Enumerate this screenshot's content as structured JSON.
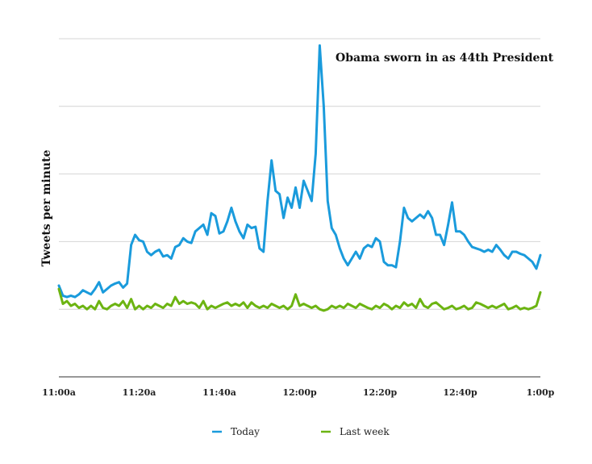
{
  "chart_data": {
    "type": "line",
    "title": "",
    "xlabel": "",
    "ylabel": "Tweets per minute",
    "x_tick_labels": [
      "11:00a",
      "11:20a",
      "11:40a",
      "12:00p",
      "12:20p",
      "12:40p",
      "1:00p"
    ],
    "x_range_minutes": [
      0,
      120
    ],
    "ylim": [
      0,
      5
    ],
    "grid": true,
    "y_tick_labels_shown": false,
    "legend": {
      "placement": "bottom-center"
    },
    "annotations": [
      {
        "text": "Obama sworn in as 44th President",
        "x_minute": 66,
        "y": 4.75
      }
    ],
    "series": [
      {
        "name": "Today",
        "color": "#1a9bdc",
        "x": [
          0,
          1,
          2,
          3,
          4,
          5,
          6,
          7,
          8,
          9,
          10,
          11,
          12,
          13,
          14,
          15,
          16,
          17,
          18,
          19,
          20,
          21,
          22,
          23,
          24,
          25,
          26,
          27,
          28,
          29,
          30,
          31,
          32,
          33,
          34,
          35,
          36,
          37,
          38,
          39,
          40,
          41,
          42,
          43,
          44,
          45,
          46,
          47,
          48,
          49,
          50,
          51,
          52,
          53,
          54,
          55,
          56,
          57,
          58,
          59,
          60,
          61,
          62,
          63,
          64,
          65,
          66,
          67,
          68,
          69,
          70,
          71,
          72,
          73,
          74,
          75,
          76,
          77,
          78,
          79,
          80,
          81,
          82,
          83,
          84,
          85,
          86,
          87,
          88,
          89,
          90,
          91,
          92,
          93,
          94,
          95,
          96,
          97,
          98,
          99,
          100,
          101,
          102,
          103,
          104,
          105,
          106,
          107,
          108,
          109,
          110,
          111,
          112,
          113,
          114,
          115,
          116,
          117,
          118,
          119,
          120
        ],
        "values": [
          1.35,
          1.2,
          1.18,
          1.2,
          1.18,
          1.22,
          1.28,
          1.25,
          1.22,
          1.3,
          1.4,
          1.25,
          1.3,
          1.35,
          1.38,
          1.4,
          1.32,
          1.38,
          1.95,
          2.1,
          2.02,
          2.0,
          1.85,
          1.8,
          1.85,
          1.88,
          1.78,
          1.8,
          1.75,
          1.92,
          1.95,
          2.05,
          2.0,
          1.98,
          2.15,
          2.2,
          2.25,
          2.1,
          2.42,
          2.38,
          2.12,
          2.15,
          2.3,
          2.5,
          2.3,
          2.15,
          2.05,
          2.25,
          2.2,
          2.22,
          1.9,
          1.85,
          2.6,
          3.2,
          2.75,
          2.7,
          2.35,
          2.65,
          2.5,
          2.8,
          2.5,
          2.9,
          2.75,
          2.6,
          3.3,
          4.9,
          4.0,
          2.6,
          2.2,
          2.1,
          1.9,
          1.75,
          1.65,
          1.75,
          1.85,
          1.75,
          1.9,
          1.95,
          1.92,
          2.05,
          2.0,
          1.7,
          1.65,
          1.65,
          1.62,
          2.0,
          2.5,
          2.35,
          2.3,
          2.35,
          2.4,
          2.35,
          2.45,
          2.35,
          2.1,
          2.1,
          1.95,
          2.25,
          2.58,
          2.15,
          2.15,
          2.1,
          2.0,
          1.92,
          1.9,
          1.88,
          1.85,
          1.88,
          1.85,
          1.95,
          1.88,
          1.8,
          1.75,
          1.85,
          1.85,
          1.82,
          1.8,
          1.75,
          1.7,
          1.6,
          1.8
        ]
      },
      {
        "name": "Last week",
        "color": "#6cb412",
        "x": [
          0,
          1,
          2,
          3,
          4,
          5,
          6,
          7,
          8,
          9,
          10,
          11,
          12,
          13,
          14,
          15,
          16,
          17,
          18,
          19,
          20,
          21,
          22,
          23,
          24,
          25,
          26,
          27,
          28,
          29,
          30,
          31,
          32,
          33,
          34,
          35,
          36,
          37,
          38,
          39,
          40,
          41,
          42,
          43,
          44,
          45,
          46,
          47,
          48,
          49,
          50,
          51,
          52,
          53,
          54,
          55,
          56,
          57,
          58,
          59,
          60,
          61,
          62,
          63,
          64,
          65,
          66,
          67,
          68,
          69,
          70,
          71,
          72,
          73,
          74,
          75,
          76,
          77,
          78,
          79,
          80,
          81,
          82,
          83,
          84,
          85,
          86,
          87,
          88,
          89,
          90,
          91,
          92,
          93,
          94,
          95,
          96,
          97,
          98,
          99,
          100,
          101,
          102,
          103,
          104,
          105,
          106,
          107,
          108,
          109,
          110,
          111,
          112,
          113,
          114,
          115,
          116,
          117,
          118,
          119,
          120
        ],
        "values": [
          1.3,
          1.08,
          1.12,
          1.05,
          1.08,
          1.02,
          1.05,
          1.0,
          1.05,
          1.0,
          1.12,
          1.02,
          1.0,
          1.05,
          1.08,
          1.05,
          1.12,
          1.02,
          1.15,
          1.0,
          1.05,
          1.0,
          1.05,
          1.02,
          1.08,
          1.05,
          1.02,
          1.08,
          1.05,
          1.18,
          1.08,
          1.12,
          1.08,
          1.1,
          1.08,
          1.02,
          1.12,
          1.0,
          1.05,
          1.02,
          1.05,
          1.08,
          1.1,
          1.05,
          1.08,
          1.05,
          1.1,
          1.02,
          1.1,
          1.05,
          1.02,
          1.05,
          1.02,
          1.08,
          1.05,
          1.02,
          1.05,
          1.0,
          1.05,
          1.22,
          1.05,
          1.08,
          1.05,
          1.02,
          1.05,
          1.0,
          0.98,
          1.0,
          1.05,
          1.02,
          1.05,
          1.02,
          1.08,
          1.05,
          1.02,
          1.08,
          1.05,
          1.02,
          1.0,
          1.05,
          1.02,
          1.08,
          1.05,
          1.0,
          1.05,
          1.02,
          1.1,
          1.05,
          1.08,
          1.02,
          1.15,
          1.05,
          1.02,
          1.08,
          1.1,
          1.05,
          1.0,
          1.02,
          1.05,
          1.0,
          1.02,
          1.05,
          1.0,
          1.02,
          1.1,
          1.08,
          1.05,
          1.02,
          1.05,
          1.02,
          1.05,
          1.08,
          1.0,
          1.02,
          1.05,
          1.0,
          1.02,
          1.0,
          1.02,
          1.05,
          1.25
        ]
      }
    ]
  }
}
